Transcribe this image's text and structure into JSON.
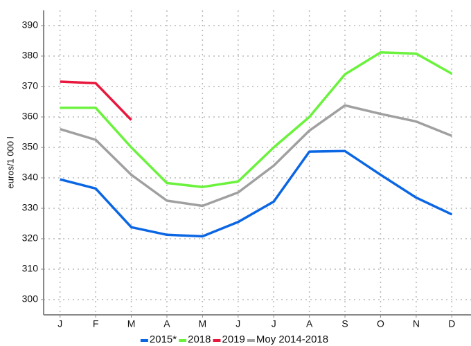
{
  "chart_data": {
    "type": "line",
    "y_label": "euros/1 000 l",
    "categories": [
      "J",
      "F",
      "M",
      "A",
      "M",
      "J",
      "J",
      "A",
      "S",
      "O",
      "N",
      "D"
    ],
    "series": [
      {
        "name": "2015*",
        "color": "#0b66e4",
        "values": [
          339.5,
          336.5,
          323.8,
          321.3,
          320.8,
          325.5,
          332.2,
          348.6,
          348.8,
          341,
          333.5,
          328
        ]
      },
      {
        "name": "2018",
        "color": "#6af23c",
        "values": [
          363,
          363,
          350,
          338.3,
          337,
          338.8,
          350,
          360,
          374,
          381.2,
          380.8,
          374.2
        ]
      },
      {
        "name": "2019",
        "color": "#e8173d",
        "values": [
          371.6,
          371.1,
          359,
          null,
          null,
          null,
          null,
          null,
          null,
          null,
          null,
          null
        ]
      },
      {
        "name": "Moy 2014-2018",
        "color": "#a0a0a0",
        "values": [
          356,
          352.5,
          341,
          332.5,
          330.8,
          335.2,
          344,
          355.5,
          363.8,
          361,
          358.5,
          353.8
        ]
      }
    ],
    "ylim": [
      295,
      395
    ],
    "yticks": [
      300,
      310,
      320,
      330,
      340,
      350,
      360,
      370,
      380,
      390
    ],
    "grid": true
  }
}
